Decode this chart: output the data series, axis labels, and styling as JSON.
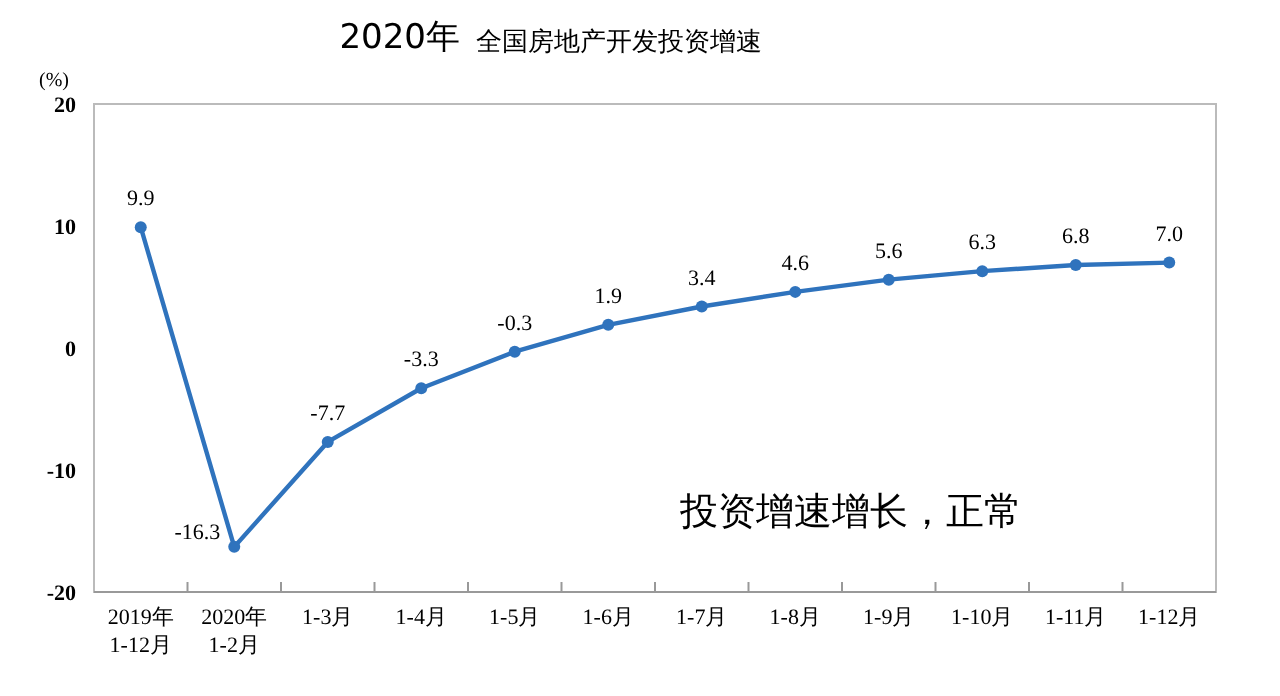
{
  "chart_data": {
    "type": "line",
    "title": "2020年",
    "subtitle": "全国房地产开发投资增速",
    "ylabel": "(%)",
    "categories": [
      "2019年 1-12月",
      "2020年 1-2月",
      "1-3月",
      "1-4月",
      "1-5月",
      "1-6月",
      "1-7月",
      "1-8月",
      "1-9月",
      "1-10月",
      "1-11月",
      "1-12月"
    ],
    "values": [
      9.9,
      -16.3,
      -7.7,
      -3.3,
      -0.3,
      1.9,
      3.4,
      4.6,
      5.6,
      6.3,
      6.8,
      7.0
    ],
    "value_labels": [
      "9.9",
      "-16.3",
      "-7.7",
      "-3.3",
      "-0.3",
      "1.9",
      "3.4",
      "4.6",
      "5.6",
      "6.3",
      "6.8",
      "7.0"
    ],
    "color": "#2f73bd",
    "marker": "circle",
    "grid": false,
    "ylim": [
      -20,
      20
    ],
    "yticks": [
      -20,
      -10,
      0,
      10,
      20
    ],
    "annotations": [
      "投资增速增长，正常"
    ]
  }
}
